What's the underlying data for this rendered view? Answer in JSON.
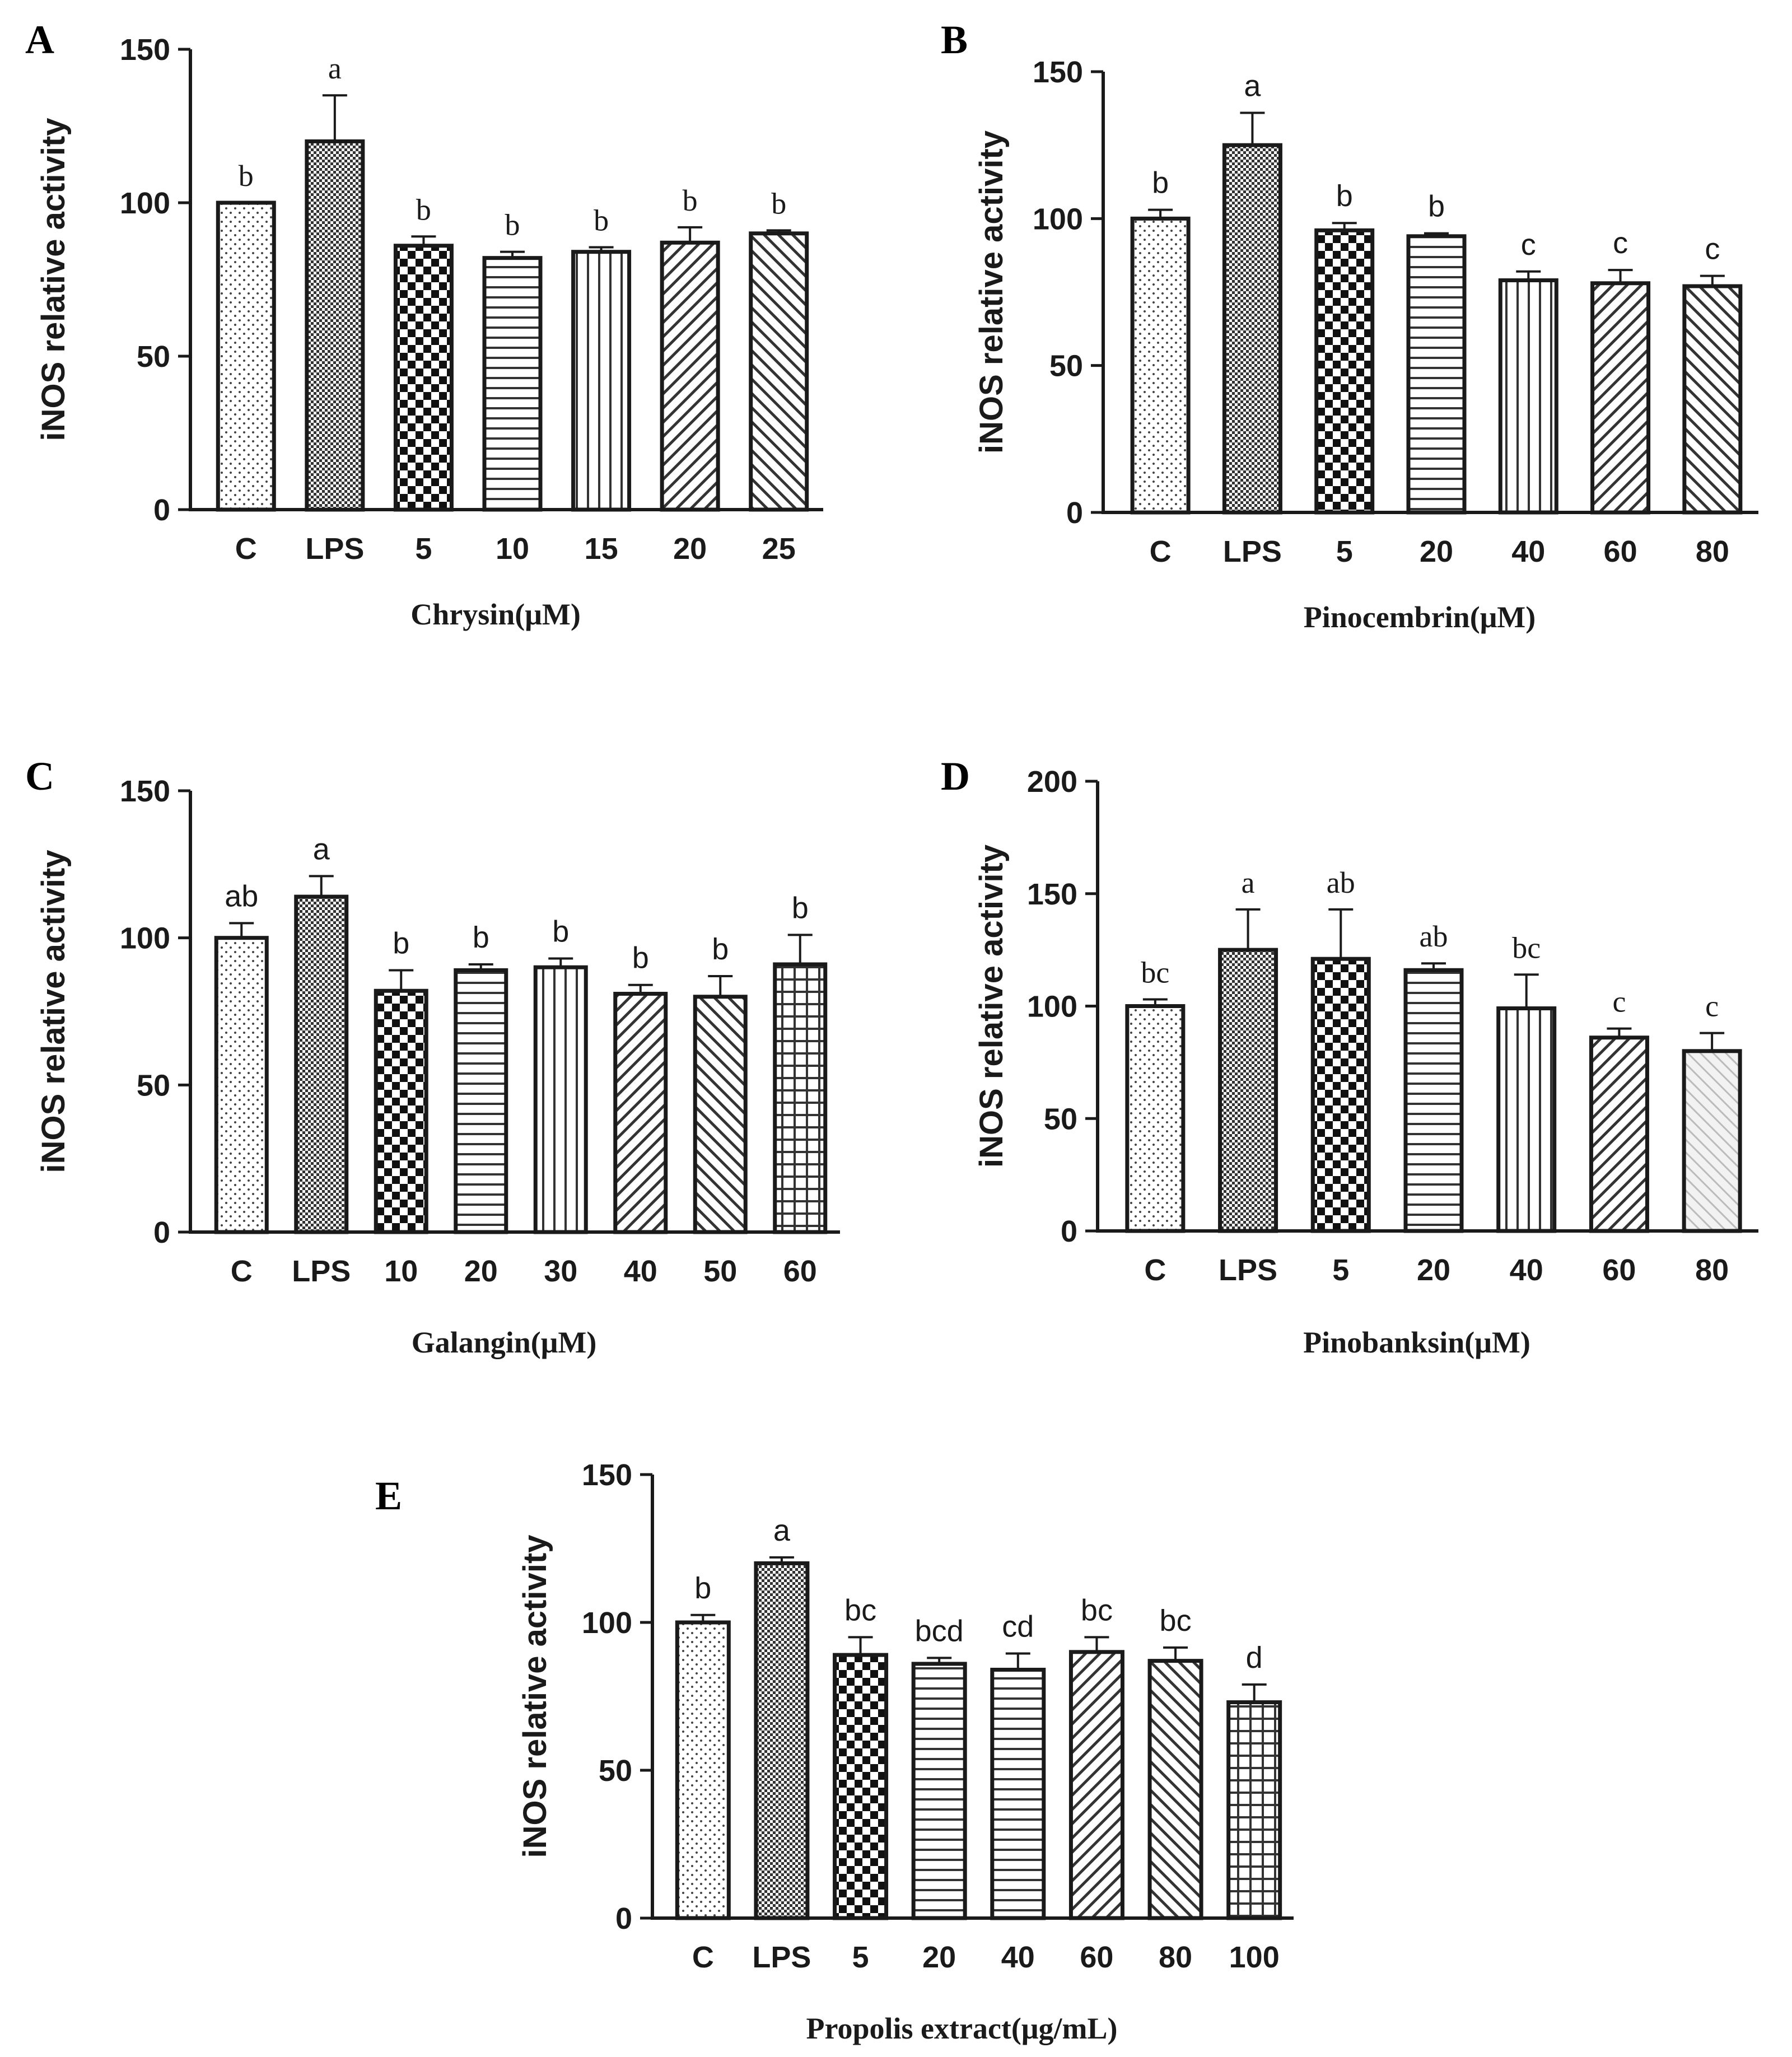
{
  "chart_data": [
    {
      "panel": "A",
      "type": "bar",
      "xlabel": "Chrysin(μM)",
      "ylabel": "iNOS relative activity",
      "ylim": [
        0,
        150
      ],
      "yticks": [
        "0",
        "50",
        "100",
        "150"
      ],
      "categories": [
        "C",
        "LPS",
        "5",
        "10",
        "15",
        "20",
        "25"
      ],
      "values": [
        100,
        120,
        86,
        82,
        84,
        87,
        90
      ],
      "errors": [
        0,
        15,
        3,
        2,
        1.5,
        5,
        1
      ],
      "significance": [
        "b",
        "a",
        "b",
        "b",
        "b",
        "b",
        "b"
      ],
      "patterns": [
        "dots",
        "checker-fine",
        "checker-coarse",
        "horizontal",
        "vertical",
        "diag-right",
        "diag-left"
      ]
    },
    {
      "panel": "B",
      "type": "bar",
      "xlabel": "Pinocembrin(μM)",
      "ylabel": "iNOS relative activity",
      "ylim": [
        0,
        150
      ],
      "yticks": [
        "0",
        "50",
        "100",
        "150"
      ],
      "categories": [
        "C",
        "LPS",
        "5",
        "20",
        "40",
        "60",
        "80"
      ],
      "values": [
        100,
        125,
        96,
        94,
        79,
        78,
        77
      ],
      "errors": [
        3,
        11,
        2.5,
        1,
        3,
        4.5,
        3.5
      ],
      "significance": [
        "b",
        "a",
        "b",
        "b",
        "c",
        "c",
        "c"
      ],
      "patterns": [
        "dots",
        "checker-fine",
        "checker-coarse",
        "horizontal",
        "vertical",
        "diag-right",
        "diag-left"
      ]
    },
    {
      "panel": "C",
      "type": "bar",
      "xlabel": "Galangin(μM)",
      "ylabel": "iNOS relative activity",
      "ylim": [
        0,
        150
      ],
      "yticks": [
        "0",
        "50",
        "100",
        "150"
      ],
      "categories": [
        "C",
        "LPS",
        "10",
        "20",
        "30",
        "40",
        "50",
        "60"
      ],
      "values": [
        100,
        114,
        82,
        89,
        90,
        81,
        80,
        91
      ],
      "errors": [
        5,
        7,
        7,
        2,
        3,
        3,
        7,
        10
      ],
      "significance": [
        "ab",
        "a",
        "b",
        "b",
        "b",
        "b",
        "b",
        "b"
      ],
      "patterns": [
        "dots",
        "checker-fine",
        "checker-coarse",
        "horizontal",
        "vertical",
        "diag-right",
        "diag-left",
        "grid"
      ]
    },
    {
      "panel": "D",
      "type": "bar",
      "xlabel": "Pinobanksin(μM)",
      "ylabel": "iNOS relative activity",
      "ylim": [
        0,
        200
      ],
      "yticks": [
        "0",
        "50",
        "100",
        "150",
        "200"
      ],
      "categories": [
        "C",
        "LPS",
        "5",
        "20",
        "40",
        "60",
        "80"
      ],
      "values": [
        100,
        125,
        121,
        116,
        99,
        86,
        80
      ],
      "errors": [
        3,
        18,
        22,
        3,
        15,
        4,
        8
      ],
      "significance": [
        "bc",
        "a",
        "ab",
        "ab",
        "bc",
        "c",
        "c"
      ],
      "patterns": [
        "dots",
        "checker-fine",
        "checker-coarse",
        "horizontal",
        "vertical",
        "diag-right",
        "diag-light"
      ]
    },
    {
      "panel": "E",
      "type": "bar",
      "xlabel": "Propolis extract(μg/mL)",
      "ylabel": "iNOS relative activity",
      "ylim": [
        0,
        150
      ],
      "yticks": [
        "0",
        "50",
        "100",
        "150"
      ],
      "categories": [
        "C",
        "LPS",
        "5",
        "20",
        "40",
        "60",
        "80",
        "100"
      ],
      "values": [
        100,
        120,
        89,
        86,
        84,
        90,
        87,
        73
      ],
      "errors": [
        2.5,
        2,
        6,
        2,
        5.5,
        5,
        4.5,
        6
      ],
      "significance": [
        "b",
        "a",
        "bc",
        "bcd",
        "cd",
        "bc",
        "bc",
        "d"
      ],
      "patterns": [
        "dots",
        "checker-fine",
        "checker-coarse",
        "horizontal",
        "horizontal",
        "diag-right",
        "diag-left",
        "grid"
      ]
    }
  ]
}
